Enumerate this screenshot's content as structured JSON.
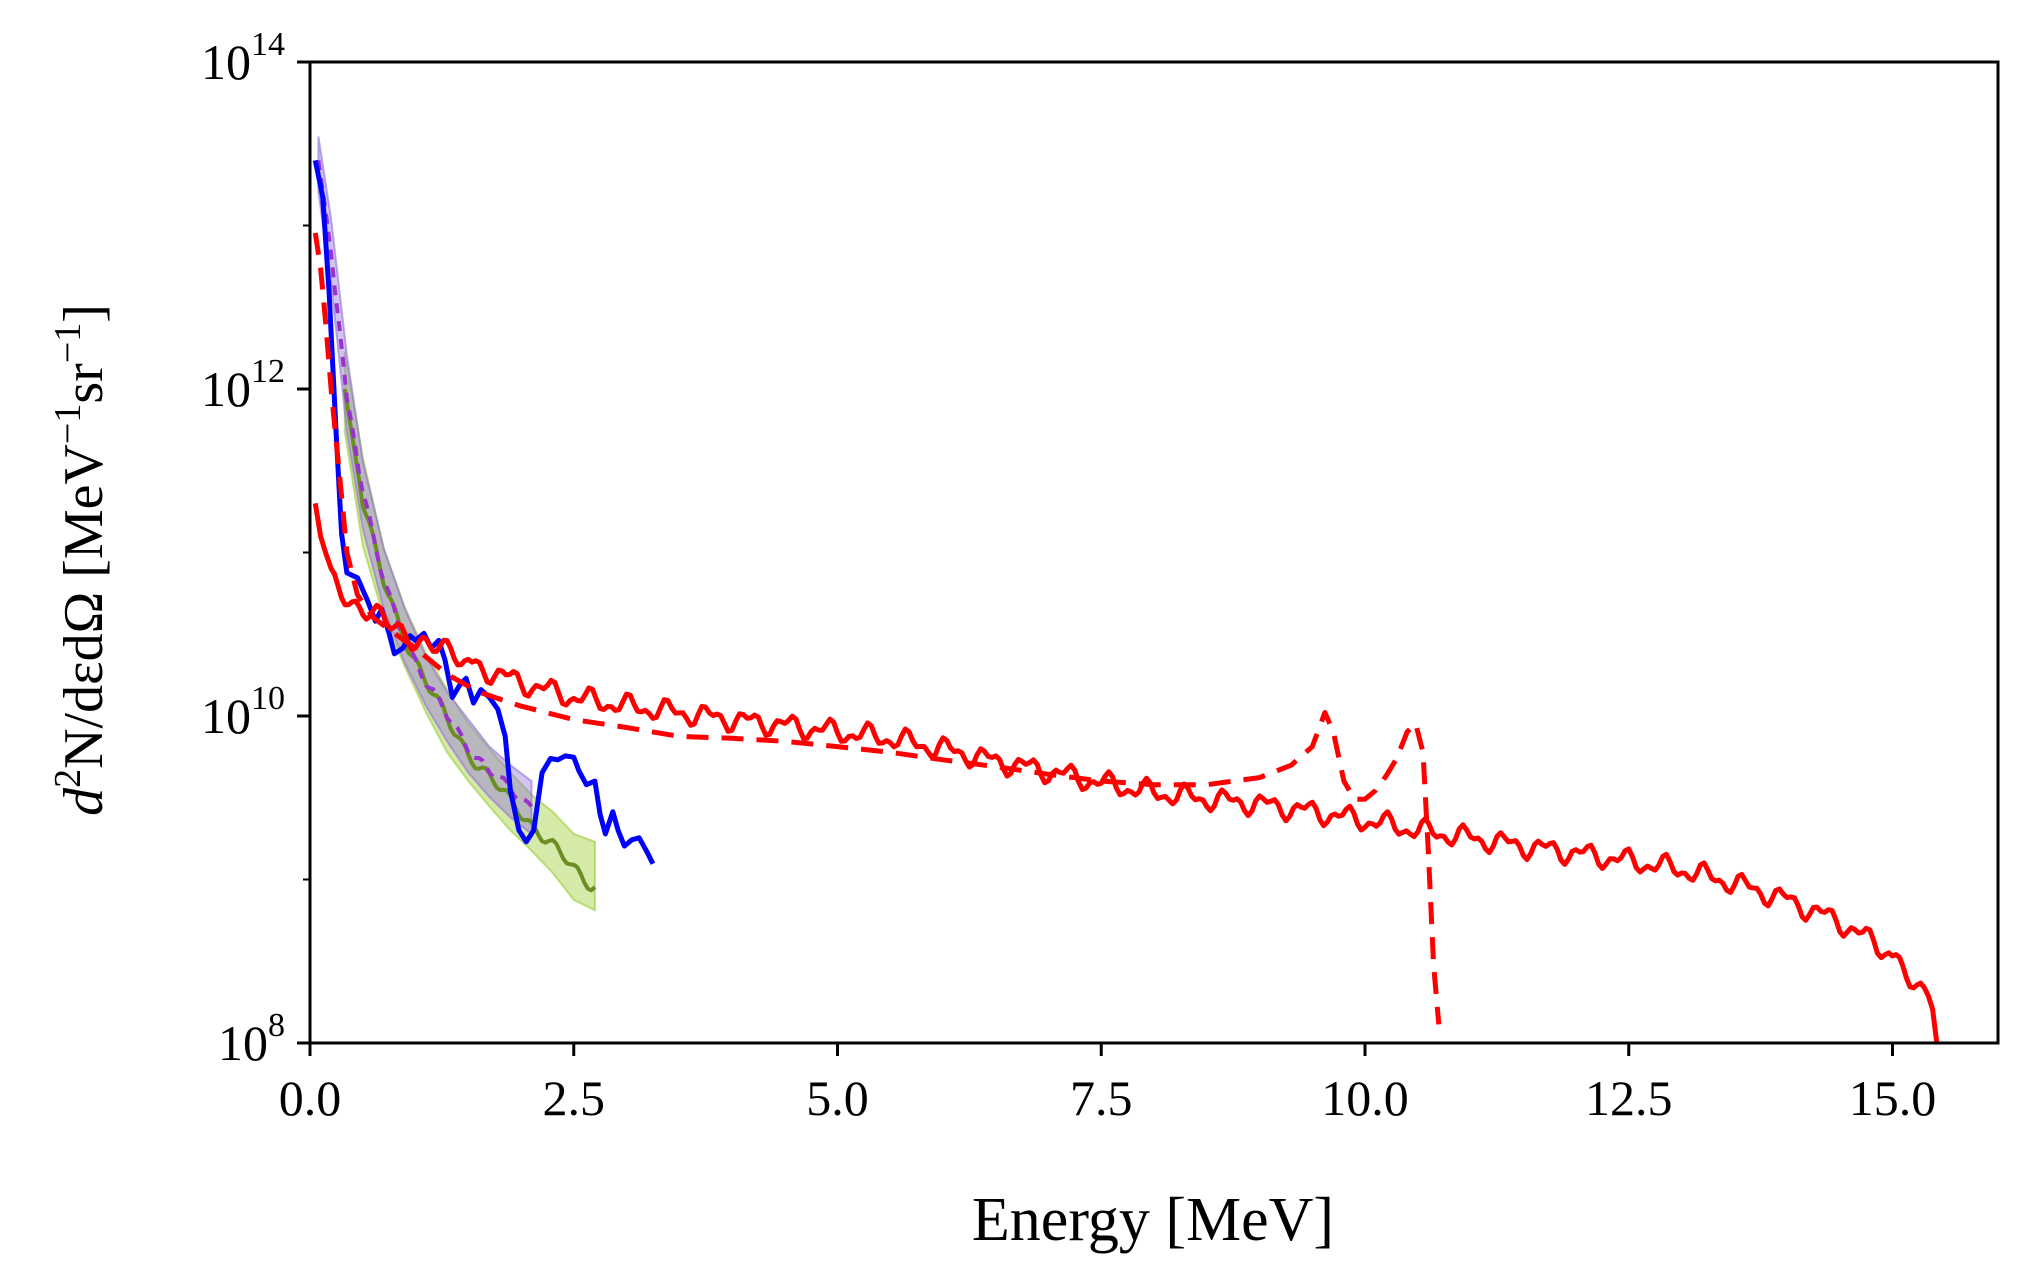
{
  "chart_data": {
    "type": "line",
    "title": "",
    "xlabel": "Energy [MeV]",
    "ylabel": {
      "prefix": "d",
      "sup1": "2",
      "mid": "N/dεdΩ [MeV",
      "sup2": "−1",
      "mid2": "sr",
      "sup3": "−1",
      "suffix": "]"
    },
    "xlim": [
      0,
      16
    ],
    "ylim": [
      100000000.0,
      100000000000000.0
    ],
    "yscale": "log",
    "x_ticks": [
      {
        "value": 0.0,
        "label": "0.0"
      },
      {
        "value": 2.5,
        "label": "2.5"
      },
      {
        "value": 5.0,
        "label": "5.0"
      },
      {
        "value": 7.5,
        "label": "7.5"
      },
      {
        "value": 10.0,
        "label": "10.0"
      },
      {
        "value": 12.5,
        "label": "12.5"
      },
      {
        "value": 15.0,
        "label": "15.0"
      }
    ],
    "y_ticks": [
      {
        "value": 100000000.0,
        "base": "10",
        "exp": "8"
      },
      {
        "value": 10000000000.0,
        "base": "10",
        "exp": "10"
      },
      {
        "value": 1000000000000.0,
        "base": "10",
        "exp": "12"
      },
      {
        "value": 100000000000000.0,
        "base": "10",
        "exp": "14"
      }
    ],
    "bands": [
      {
        "name": "green-band",
        "color": "#9acd32",
        "x": [
          0.33,
          0.5,
          0.7,
          0.9,
          1.1,
          1.3,
          1.5,
          1.7,
          1.9,
          2.1,
          2.3,
          2.5,
          2.7
        ],
        "lower": [
          550000000000.0,
          110000000000.0,
          40000000000.0,
          20000000000.0,
          10500000000.0,
          6000000000.0,
          4000000000.0,
          2800000000.0,
          2000000000.0,
          1500000000.0,
          1100000000.0,
          750000000.0,
          650000000.0
        ],
        "upper": [
          1700000000000.0,
          380000000000.0,
          105000000000.0,
          46000000000.0,
          24000000000.0,
          14500000000.0,
          9000000000.0,
          6300000000.0,
          4500000000.0,
          3300000000.0,
          2600000000.0,
          1900000000.0,
          1700000000.0
        ]
      },
      {
        "name": "purple-band",
        "color": "#9370db",
        "x": [
          0.08,
          0.2,
          0.35,
          0.5,
          0.7,
          0.9,
          1.1,
          1.3,
          1.5,
          1.7,
          1.9,
          2.1
        ],
        "lower": [
          16000000000000.0,
          4500000000000.0,
          550000000000.0,
          140000000000.0,
          45000000000.0,
          21000000000.0,
          11500000000.0,
          7000000000.0,
          4500000000.0,
          3200000000.0,
          2400000000.0,
          1900000000.0
        ],
        "upper": [
          35000000000000.0,
          11000000000000.0,
          1600000000000.0,
          360000000000.0,
          105000000000.0,
          45000000000.0,
          23000000000.0,
          14000000000.0,
          9500000000.0,
          6500000000.0,
          5000000000.0,
          4000000000.0
        ]
      }
    ],
    "series": [
      {
        "name": "green-mean",
        "color": "#6b8e23",
        "dash": "solid",
        "width": 4,
        "noise": 0.05,
        "x": [
          0.33,
          0.5,
          0.7,
          0.9,
          1.1,
          1.3,
          1.5,
          1.7,
          1.9,
          2.1,
          2.3,
          2.5,
          2.7
        ],
        "y": [
          1000000000000.0,
          200000000000.0,
          65000000000.0,
          30000000000.0,
          16000000000.0,
          9500000000.0,
          6000000000.0,
          4200000000.0,
          3000000000.0,
          2200000000.0,
          1600000000.0,
          1150000000.0,
          900000000.0
        ]
      },
      {
        "name": "purple-dashed",
        "color": "#9932cc",
        "dash": "10,8",
        "width": 4,
        "noise": 0.04,
        "x": [
          0.08,
          0.2,
          0.35,
          0.5,
          0.7,
          0.9,
          1.1,
          1.3,
          1.5,
          1.7,
          1.9,
          2.1
        ],
        "y": [
          25000000000000.0,
          7000000000000.0,
          950000000000.0,
          230000000000.0,
          65000000000.0,
          30000000000.0,
          16000000000.0,
          10000000000.0,
          6500000000.0,
          4600000000.0,
          3500000000.0,
          2800000000.0
        ]
      },
      {
        "name": "blue-solid",
        "color": "#0000ff",
        "dash": "solid",
        "width": 5,
        "noise": 0,
        "x": [
          0.05,
          0.12,
          0.18,
          0.25,
          0.3,
          0.35,
          0.45,
          0.55,
          0.62,
          0.68,
          0.75,
          0.8,
          0.88,
          0.95,
          1.0,
          1.08,
          1.15,
          1.22,
          1.28,
          1.35,
          1.42,
          1.48,
          1.55,
          1.62,
          1.7,
          1.78,
          1.85,
          1.9,
          1.98,
          2.05,
          2.12,
          2.2,
          2.28,
          2.35,
          2.42,
          2.5,
          2.55,
          2.62,
          2.7,
          2.75,
          2.8,
          2.87,
          2.92,
          2.98,
          3.05,
          3.12,
          3.2,
          3.25
        ],
        "y": [
          25000000000000.0,
          15000000000000.0,
          4000000000000.0,
          500000000000.0,
          130000000000.0,
          75000000000.0,
          70000000000.0,
          50000000000.0,
          38000000000.0,
          45000000000.0,
          32000000000.0,
          24000000000.0,
          26000000000.0,
          31000000000.0,
          29000000000.0,
          32000000000.0,
          26000000000.0,
          29000000000.0,
          22000000000.0,
          13000000000.0,
          15500000000.0,
          17000000000.0,
          12000000000.0,
          14500000000.0,
          13000000000.0,
          11000000000.0,
          7500000000.0,
          3500000000.0,
          2000000000.0,
          1700000000.0,
          2000000000.0,
          4500000000.0,
          5500000000.0,
          5400000000.0,
          5700000000.0,
          5600000000.0,
          4600000000.0,
          3800000000.0,
          4000000000.0,
          2500000000.0,
          1900000000.0,
          2600000000.0,
          2000000000.0,
          1600000000.0,
          1750000000.0,
          1800000000.0,
          1450000000.0,
          1250000000.0
        ]
      },
      {
        "name": "red-dashed",
        "color": "#ff0000",
        "dash": "22,13",
        "width": 5,
        "noise": 0,
        "x": [
          0.05,
          0.1,
          0.15,
          0.2,
          0.28,
          0.35,
          0.45,
          0.6,
          0.8,
          1.0,
          1.3,
          1.6,
          2.0,
          2.5,
          3.0,
          3.5,
          4.0,
          4.5,
          5.0,
          5.5,
          6.0,
          6.5,
          7.0,
          7.5,
          8.0,
          8.5,
          9.0,
          9.3,
          9.5,
          9.62,
          9.7,
          9.8,
          9.9,
          10.0,
          10.1,
          10.2,
          10.3,
          10.4,
          10.48,
          10.55,
          10.6,
          10.65,
          10.7
        ],
        "y": [
          9000000000000.0,
          5500000000000.0,
          2500000000000.0,
          1000000000000.0,
          300000000000.0,
          100000000000.0,
          55000000000.0,
          40000000000.0,
          32000000000.0,
          26000000000.0,
          18000000000.0,
          14000000000.0,
          11500000000.0,
          9500000000.0,
          8500000000.0,
          7500000000.0,
          7300000000.0,
          7000000000.0,
          6500000000.0,
          6000000000.0,
          5400000000.0,
          4900000000.0,
          4400000000.0,
          4000000000.0,
          3800000000.0,
          3800000000.0,
          4200000000.0,
          5000000000.0,
          6500000000.0,
          10500000000.0,
          8000000000.0,
          4000000000.0,
          3100000000.0,
          3100000000.0,
          3500000000.0,
          4300000000.0,
          5500000000.0,
          8000000000.0,
          9000000000.0,
          6000000000.0,
          1500000000.0,
          300000000.0,
          130000000.0
        ]
      },
      {
        "name": "red-solid",
        "color": "#ff0000",
        "dash": "solid",
        "width": 5,
        "noise": 0.08,
        "x": [
          0.05,
          0.1,
          0.15,
          0.2,
          0.3,
          0.4,
          0.5,
          0.7,
          0.9,
          1.2,
          1.5,
          2.0,
          2.5,
          3.0,
          3.5,
          4.0,
          4.5,
          5.0,
          5.5,
          6.0,
          6.5,
          7.0,
          7.5,
          8.0,
          8.5,
          9.0,
          9.5,
          10.0,
          10.5,
          11.0,
          11.5,
          12.0,
          12.5,
          13.0,
          13.5,
          14.0,
          14.5,
          15.0,
          15.2,
          15.3,
          15.38,
          15.42
        ],
        "y": [
          200000000000.0,
          130000000000.0,
          90000000000.0,
          70000000000.0,
          60000000000.0,
          50000000000.0,
          45000000000.0,
          38000000000.0,
          32000000000.0,
          26000000000.0,
          21000000000.0,
          16000000000.0,
          13000000000.0,
          11500000000.0,
          10500000000.0,
          9500000000.0,
          8800000000.0,
          8000000000.0,
          7300000000.0,
          6300000000.0,
          5300000000.0,
          4600000000.0,
          3900000000.0,
          3400000000.0,
          3100000000.0,
          2900000000.0,
          2600000000.0,
          2300000000.0,
          2000000000.0,
          1800000000.0,
          1600000000.0,
          1450000000.0,
          1300000000.0,
          1150000000.0,
          950000000.0,
          750000000.0,
          550000000.0,
          350000000.0,
          250000000.0,
          200000000.0,
          150000000.0,
          100000000.0
        ]
      }
    ]
  }
}
